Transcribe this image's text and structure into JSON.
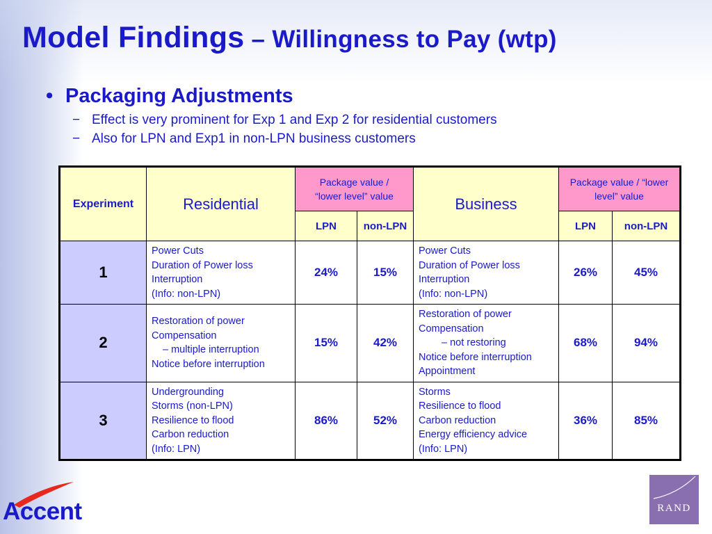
{
  "slide": {
    "title_main": "Model Findings",
    "title_sub": " – Willingness to Pay (wtp)",
    "bullet": "Packaging Adjustments",
    "bullet_glyph": "•",
    "sub_dash": "−",
    "sub_bullets": [
      "Effect is very prominent for Exp 1 and Exp 2 for residential customers",
      "Also for LPN and Exp1 in non-LPN business customers"
    ]
  },
  "table": {
    "headers": {
      "experiment": "Experiment",
      "residential": "Residential",
      "residential_pkg_line1": "Package value /",
      "residential_pkg_line2": "“lower level” value",
      "business": "Business",
      "business_pkg_line1": "Package value / “lower",
      "business_pkg_line2": "level” value",
      "lpn": "LPN",
      "non_lpn": "non-LPN"
    },
    "rows": [
      {
        "exp": "1",
        "residential_lines": [
          "Power Cuts",
          "Duration of Power loss",
          "Interruption",
          "(Info: non-LPN)"
        ],
        "res_lpn": "24%",
        "res_non_lpn": "15%",
        "business_lines": [
          "Power Cuts",
          "Duration of Power loss",
          "Interruption",
          "(Info: non-LPN)"
        ],
        "bus_lpn": "26%",
        "bus_non_lpn": "45%"
      },
      {
        "exp": "2",
        "residential_lines": [
          "Restoration of power",
          "Compensation",
          "– multiple interruption",
          "Notice before interruption"
        ],
        "res_lpn": "15%",
        "res_non_lpn": "42%",
        "business_lines": [
          "Restoration of power",
          "Compensation",
          "– not restoring",
          "Notice before interruption",
          "Appointment"
        ],
        "bus_lpn": "68%",
        "bus_non_lpn": "94%"
      },
      {
        "exp": "3",
        "residential_lines": [
          "Undergrounding",
          "Storms (non-LPN)",
          "Resilience to flood",
          "Carbon reduction",
          "(Info: LPN)"
        ],
        "res_lpn": "86%",
        "res_non_lpn": "52%",
        "business_lines": [
          "Storms",
          "Resilience to flood",
          "Carbon reduction",
          "Energy efficiency advice",
          "(Info: LPN)"
        ],
        "bus_lpn": "36%",
        "bus_non_lpn": "85%"
      }
    ]
  },
  "logos": {
    "accent": "Accent",
    "rand": "RAND"
  },
  "colors": {
    "text_blue": "#1a1ac8",
    "header_yellow": "#ffffcc",
    "header_pink": "#ff99cc",
    "experiment_lavender": "#ccccff",
    "accent_red": "#e8281e",
    "rand_purple": "#8a6fb0"
  }
}
